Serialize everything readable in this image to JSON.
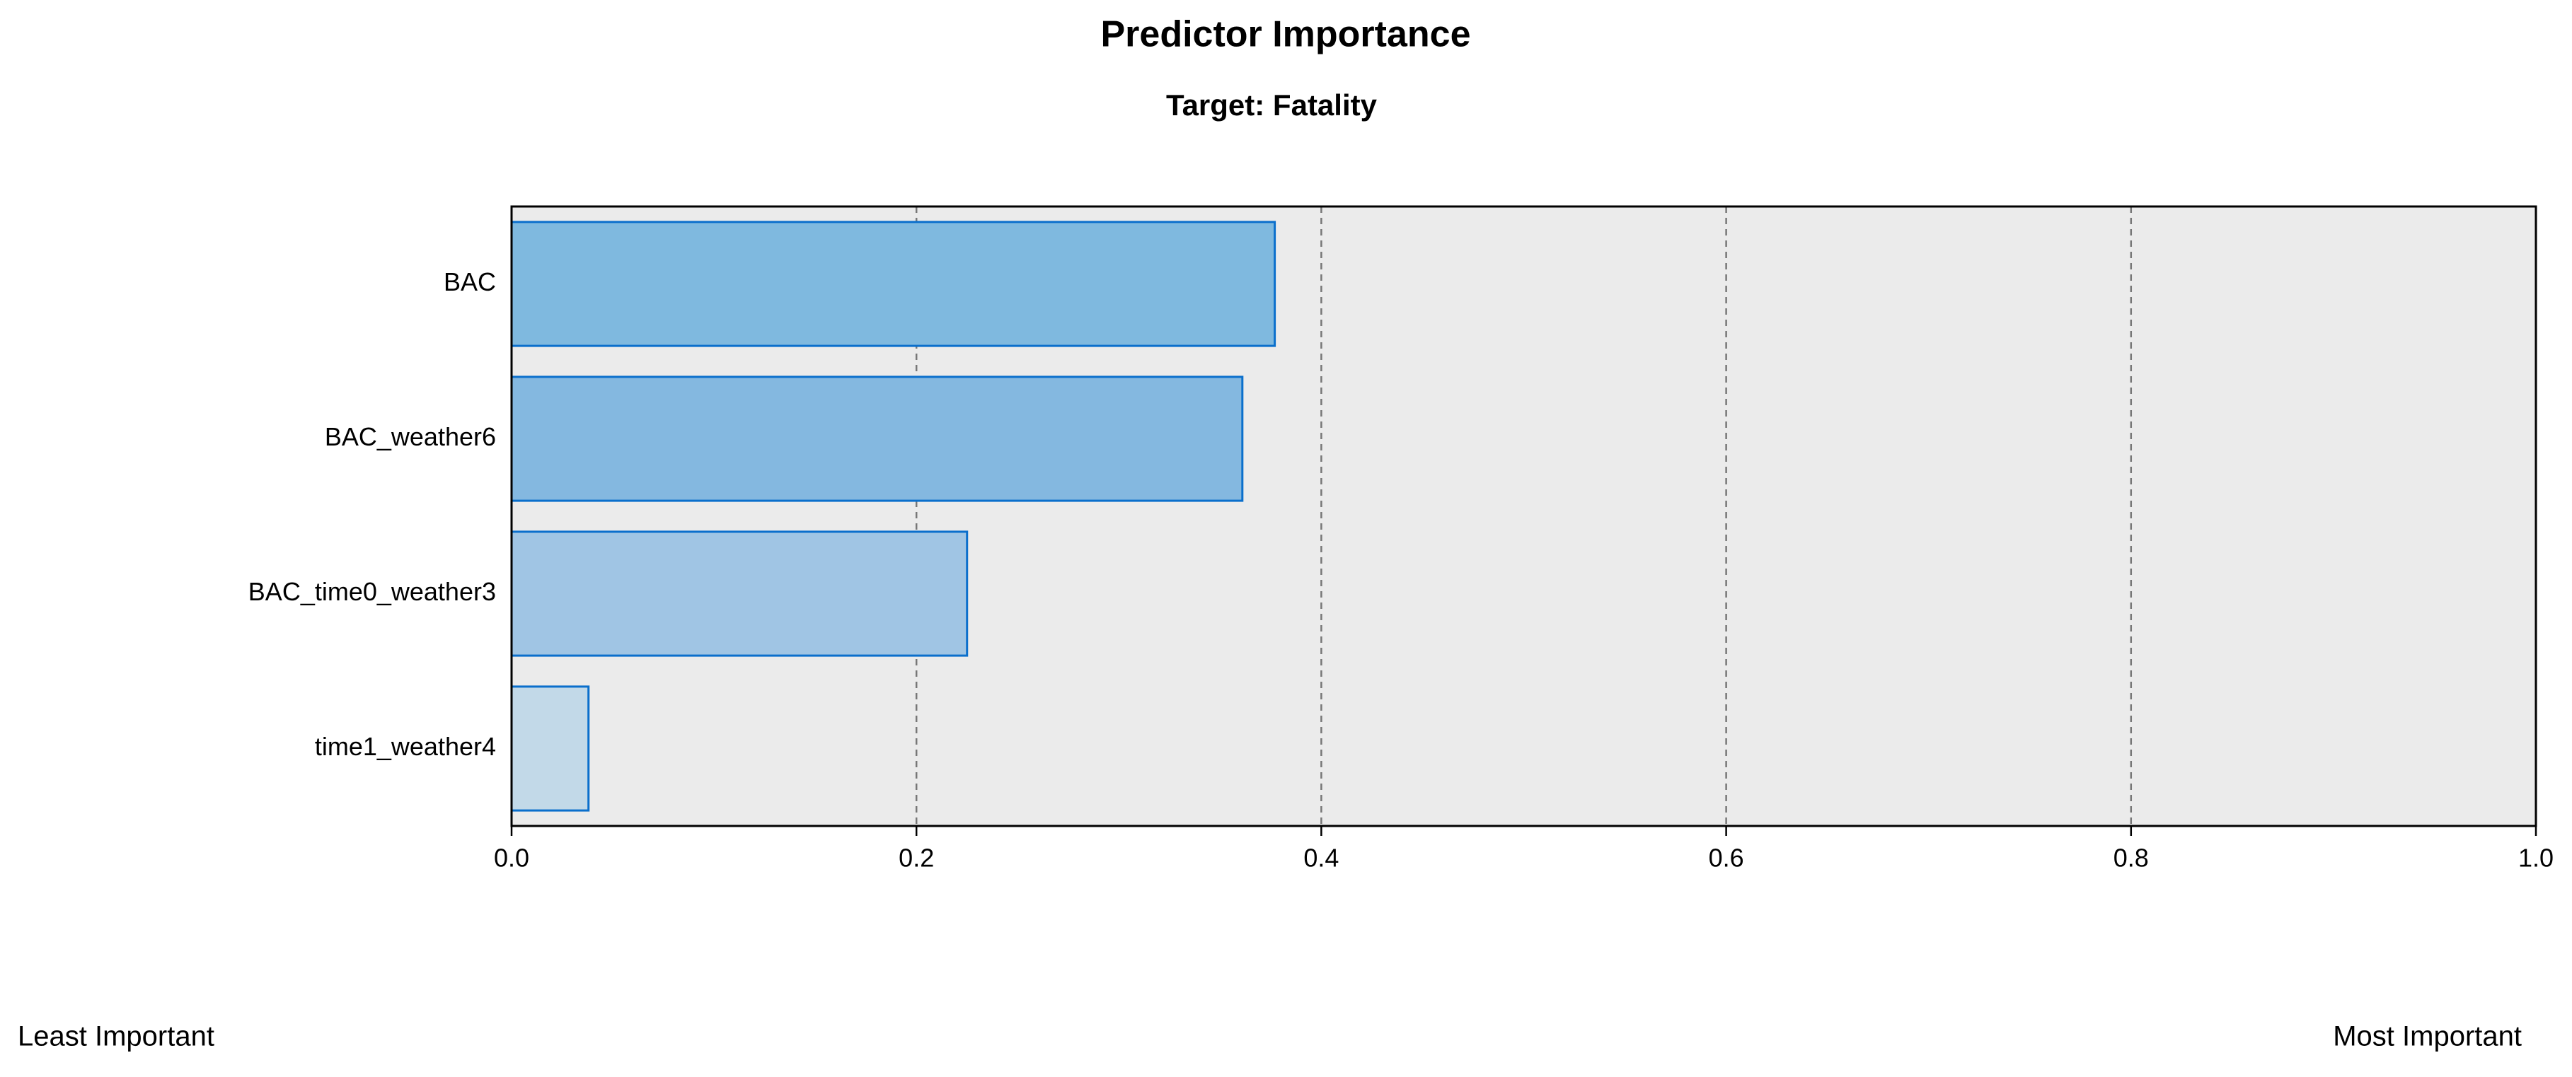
{
  "chart_data": {
    "type": "hbar",
    "title": "Predictor Importance",
    "subtitle": "Target: Fatality",
    "categories": [
      "BAC",
      "BAC_weather6",
      "BAC_time0_weather3",
      "time1_weather4"
    ],
    "values": [
      0.377,
      0.361,
      0.225,
      0.038
    ],
    "colors": [
      "#7fb9df",
      "#84b8e0",
      "#a0c5e4",
      "#c2d9e8"
    ],
    "xlim": [
      0,
      1
    ],
    "xticks": [
      {
        "value": 0,
        "label": "0.0"
      },
      0.2,
      0.4,
      0.6,
      0.8,
      {
        "value": 1,
        "label": "1.0"
      }
    ],
    "grid": true,
    "annotations": [
      "Least Important",
      "Most Important"
    ]
  }
}
